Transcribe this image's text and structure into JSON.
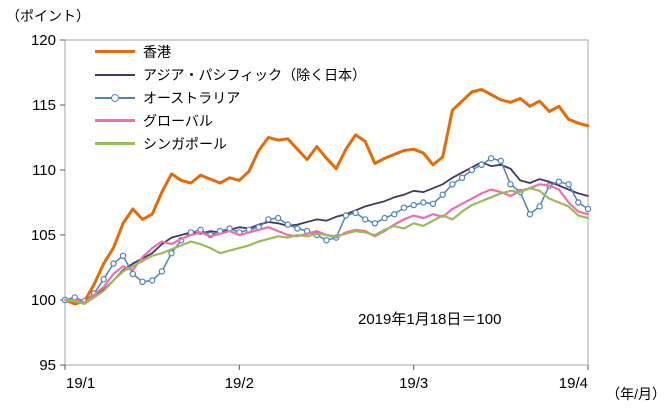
{
  "axis_labels": {
    "y_unit": "（ポイント）",
    "x_unit": "（年/月）"
  },
  "annotation": "2019年1月18日＝100",
  "chart_data": {
    "type": "line",
    "title": "",
    "ylim": [
      95,
      120
    ],
    "yticks": [
      120,
      115,
      110,
      105,
      100,
      95
    ],
    "xticks": [
      "19/1",
      "19/2",
      "19/3",
      "19/4"
    ],
    "grid": false,
    "legend_position": "inside-top-left",
    "series": [
      {
        "name": "香港",
        "color": "#E36C09",
        "width": 3,
        "marker": false,
        "values": [
          100,
          99.7,
          99.9,
          101.2,
          102.8,
          104,
          105.9,
          107,
          106.2,
          106.6,
          108.3,
          109.7,
          109.2,
          109,
          109.6,
          109.3,
          109,
          109.4,
          109.2,
          109.9,
          111.5,
          112.5,
          112.3,
          112.4,
          111.6,
          110.8,
          111.8,
          110.9,
          110.1,
          111.6,
          112.7,
          112.2,
          110.5,
          110.9,
          111.2,
          111.5,
          111.6,
          111.3,
          110.4,
          111,
          114.6,
          115.3,
          116,
          116.2,
          115.8,
          115.4,
          115.2,
          115.5,
          114.9,
          115.3,
          114.5,
          114.9,
          113.9,
          113.6,
          113.4
        ]
      },
      {
        "name": "アジア・パシフィック（除く日本）",
        "color": "#403A60",
        "width": 1.8,
        "marker": false,
        "values": [
          100,
          100,
          99.8,
          100.3,
          100.8,
          101.5,
          102.3,
          102.8,
          103.2,
          103.6,
          104.3,
          104.8,
          105,
          105.2,
          105.1,
          105.3,
          105.2,
          105.4,
          105.6,
          105.5,
          105.8,
          106,
          105.9,
          105.7,
          105.8,
          106,
          106.2,
          106.1,
          106.4,
          106.6,
          106.9,
          107.2,
          107.4,
          107.6,
          107.9,
          108.1,
          108.4,
          108.3,
          108.6,
          108.9,
          109.4,
          109.8,
          110.2,
          110.6,
          110.3,
          110.4,
          110.1,
          109.2,
          109,
          109.3,
          109.1,
          108.8,
          108.5,
          108.2,
          108
        ]
      },
      {
        "name": "オーストラリア",
        "color": "#4F81BD",
        "width": 1.5,
        "marker": true,
        "values": [
          100,
          100.2,
          99.9,
          100.5,
          101.6,
          102.8,
          103.4,
          102,
          101.4,
          101.5,
          102.2,
          103.6,
          104.6,
          105.2,
          105.4,
          105,
          105.3,
          105.5,
          105.2,
          105.4,
          105.6,
          106.2,
          106.3,
          105.8,
          105.5,
          105.3,
          105,
          104.6,
          104.8,
          106.5,
          106.7,
          106.2,
          105.9,
          106.3,
          106.6,
          107.1,
          107.3,
          107.5,
          107.4,
          108.1,
          108.9,
          109.4,
          110,
          110.4,
          110.9,
          110.7,
          108.9,
          108.3,
          106.6,
          107.2,
          108.8,
          109.1,
          108.9,
          107.5,
          107
        ]
      },
      {
        "name": "グローバル",
        "color": "#F06EAA",
        "width": 2.2,
        "marker": false,
        "values": [
          100,
          100,
          99.8,
          100.4,
          101,
          102,
          102.6,
          102.3,
          103.3,
          104,
          104.5,
          104.3,
          104.7,
          105,
          105.2,
          104.9,
          105.1,
          105.3,
          105,
          105.2,
          105.4,
          105.6,
          105.3,
          105,
          104.9,
          105.1,
          105.3,
          105,
          104.8,
          105.2,
          105.4,
          105.3,
          104.9,
          105.3,
          105.8,
          106.2,
          106.5,
          106.3,
          106.6,
          106.4,
          107,
          107.4,
          107.8,
          108.2,
          108.5,
          108.3,
          108,
          108.4,
          108.6,
          108.9,
          108.8,
          108.5,
          107.5,
          106.8,
          106.6
        ]
      },
      {
        "name": "シンガポール",
        "color": "#9BBB59",
        "width": 2.2,
        "marker": false,
        "values": [
          100,
          99.9,
          99.7,
          100.2,
          100.7,
          101.5,
          102.2,
          102.6,
          103,
          103.4,
          103.6,
          103.9,
          104.2,
          104.5,
          104.3,
          104,
          103.6,
          103.8,
          104,
          104.2,
          104.5,
          104.7,
          104.9,
          104.8,
          105,
          104.9,
          105.1,
          105,
          104.9,
          105.1,
          105.3,
          105.2,
          105,
          105.4,
          105.7,
          105.5,
          105.9,
          105.7,
          106.1,
          106.5,
          106.2,
          106.8,
          107.3,
          107.6,
          107.9,
          108.2,
          108.4,
          108.3,
          108.6,
          108.4,
          107.8,
          107.5,
          107.2,
          106.5,
          106.3
        ]
      }
    ]
  }
}
